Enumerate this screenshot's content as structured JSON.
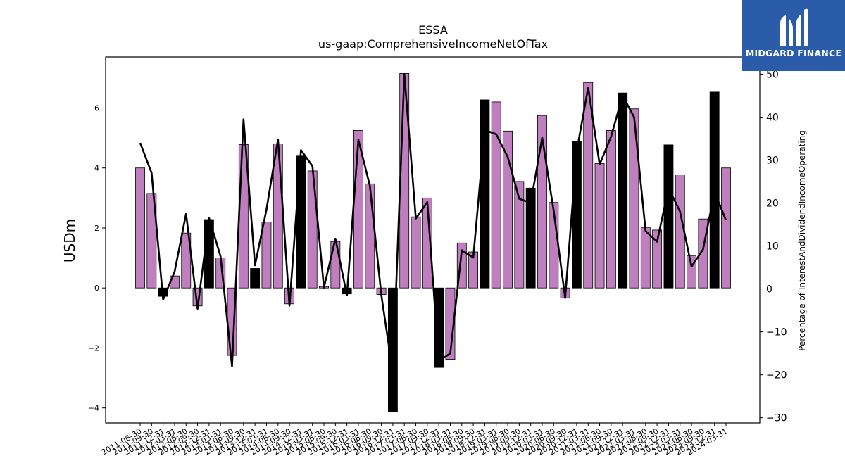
{
  "logo": {
    "text": "MIDGARD FINANCE",
    "bg_color": "#2a5caa"
  },
  "chart_data": {
    "type": "bar",
    "title": "ESSA",
    "subtitle": "us-gaap:ComprehensiveIncomeNetOfTax",
    "ylabel": "USDm",
    "ylabel_right": "Percentage of InterestAndDividendIncomeOperating",
    "ylim": [
      -4.5,
      7.7
    ],
    "ylim_right": [
      -31.2,
      54.0
    ],
    "yticks": [
      -4,
      -2,
      0,
      2,
      4,
      6
    ],
    "yticks_right": [
      -30,
      -20,
      -10,
      0,
      10,
      20,
      30,
      40,
      50
    ],
    "colors": {
      "q4_bar": "#000000",
      "quarter_bar": "#bf7fbf",
      "line": "#000000"
    },
    "grid": false,
    "x": [
      "2011-06-30",
      "2011-09-30",
      "2011-12-31",
      "2012-03-31",
      "2012-06-30",
      "2012-09-30",
      "2012-12-31",
      "2013-03-31",
      "2013-06-30",
      "2013-09-30",
      "2013-12-31",
      "2014-03-31",
      "2014-06-30",
      "2014-09-30",
      "2014-12-31",
      "2015-03-31",
      "2015-06-30",
      "2015-09-30",
      "2015-12-31",
      "2016-03-31",
      "2016-06-30",
      "2016-09-30",
      "2016-12-31",
      "2017-03-31",
      "2017-06-30",
      "2017-09-30",
      "2017-12-31",
      "2018-03-31",
      "2018-06-30",
      "2018-09-30",
      "2018-12-31",
      "2019-03-31",
      "2019-06-30",
      "2019-09-30",
      "2019-12-31",
      "2020-03-31",
      "2020-06-30",
      "2020-09-30",
      "2020-12-31",
      "2021-03-31",
      "2021-06-30",
      "2021-09-30",
      "2021-12-31",
      "2022-03-31",
      "2022-06-30",
      "2022-09-30",
      "2022-12-31",
      "2023-03-31",
      "2023-06-30",
      "2023-09-30",
      "2023-12-31",
      "2024-03-31"
    ],
    "series": [
      {
        "values": [
          4.0,
          3.15,
          -0.28,
          0.4,
          1.83,
          -0.6,
          2.28,
          1.0,
          -2.25,
          4.78,
          0.65,
          2.2,
          4.8,
          -0.53,
          4.42,
          3.9,
          0.05,
          1.55,
          -0.2,
          5.25,
          3.47,
          -0.22,
          -4.12,
          7.15,
          2.37,
          3.0,
          -2.65,
          -2.38,
          1.5,
          1.2,
          6.27,
          6.2,
          5.23,
          3.55,
          3.33,
          5.75,
          2.85,
          -0.33,
          4.88,
          6.85,
          4.15,
          5.25,
          6.5,
          5.97,
          2.02,
          1.93,
          4.77,
          3.77,
          1.08,
          2.3,
          6.53,
          4.0
        ]
      },
      {
        "values": [
          34.0,
          27.0,
          -2.5,
          4.0,
          17.5,
          -4.6,
          16.5,
          7.6,
          -18.0,
          39.5,
          5.5,
          18.5,
          34.8,
          -3.9,
          32.3,
          28.6,
          0.3,
          11.7,
          -1.5,
          34.7,
          24.0,
          -1.5,
          -19.5,
          50.0,
          16.4,
          20.2,
          -16.8,
          -15.0,
          9.0,
          7.3,
          37.0,
          36.0,
          30.7,
          21.0,
          20.0,
          35.2,
          18.2,
          -2.1,
          32.0,
          46.9,
          29.0,
          35.5,
          45.0,
          40.0,
          13.5,
          11.0,
          23.5,
          18.0,
          5.2,
          9.2,
          22.5,
          16.0
        ]
      }
    ]
  }
}
